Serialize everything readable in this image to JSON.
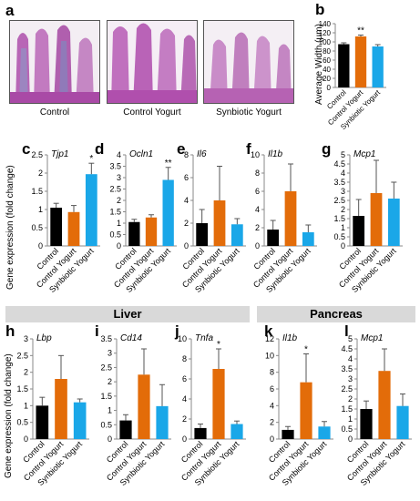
{
  "panels": {
    "a": "a",
    "b": "b",
    "c": "c",
    "d": "d",
    "e": "e",
    "f": "f",
    "g": "g",
    "h": "h",
    "i": "i",
    "j": "j",
    "k": "k",
    "l": "l"
  },
  "histology_captions": [
    "Control",
    "Control Yogurt",
    "Synbiotic Yogurt"
  ],
  "sections": {
    "liver": "Liver",
    "pancreas": "Pancreas"
  },
  "ylabels": {
    "b": "Average Width (µm)",
    "row1": "Gene expression (fold change)",
    "row2": "Gene expression (fold change)"
  },
  "colors": {
    "control": "#000000",
    "control_yogurt": "#e36c09",
    "synbiotic_yogurt": "#1aa7e8"
  },
  "chart_data": [
    {
      "id": "b",
      "type": "bar",
      "categories": [
        "Control",
        "Control Yogurt",
        "Synbiotic Yogurt"
      ],
      "values": [
        95,
        112,
        90
      ],
      "errors": [
        3,
        3,
        4
      ],
      "sig": [
        "",
        "**",
        ""
      ],
      "title": "",
      "ylabel": "Average Width (µm)",
      "ylim": [
        0,
        140
      ],
      "yticks": [
        0,
        20,
        40,
        60,
        80,
        100,
        120,
        140
      ]
    },
    {
      "id": "c",
      "type": "bar",
      "title": "Tjp1",
      "categories": [
        "Control",
        "Control Yogurt",
        "Synbiotic Yogurt"
      ],
      "values": [
        1.05,
        0.93,
        1.97
      ],
      "errors": [
        0.12,
        0.18,
        0.3
      ],
      "sig": [
        "",
        "",
        "*"
      ],
      "ylim": [
        0,
        2.5
      ],
      "yticks": [
        0,
        0.5,
        1,
        1.5,
        2,
        2.5
      ]
    },
    {
      "id": "d",
      "type": "bar",
      "title": "Ocln1",
      "categories": [
        "Control",
        "Control Yogurt",
        "Synbiotic Yogurt"
      ],
      "values": [
        1.05,
        1.25,
        2.9
      ],
      "errors": [
        0.12,
        0.12,
        0.55
      ],
      "sig": [
        "",
        "",
        "**"
      ],
      "ylim": [
        0,
        4
      ],
      "yticks": [
        0,
        0.5,
        1,
        1.5,
        2,
        2.5,
        3,
        3.5,
        4
      ]
    },
    {
      "id": "e",
      "type": "bar",
      "title": "Il6",
      "categories": [
        "Control",
        "Control Yogurt",
        "Synbiotic Yogurt"
      ],
      "values": [
        2,
        4,
        1.9
      ],
      "errors": [
        1.2,
        3,
        0.5
      ],
      "sig": [
        "",
        "",
        ""
      ],
      "ylim": [
        0,
        8
      ],
      "yticks": [
        0,
        2,
        4,
        6,
        8
      ]
    },
    {
      "id": "f",
      "type": "bar",
      "title": "Il1b",
      "categories": [
        "Control",
        "Control Yogurt",
        "Synbiotic Yogurt"
      ],
      "values": [
        1.8,
        6,
        1.5
      ],
      "errors": [
        1,
        3,
        0.8
      ],
      "sig": [
        "",
        "",
        ""
      ],
      "ylim": [
        0,
        10
      ],
      "yticks": [
        0,
        2,
        4,
        6,
        8,
        10
      ]
    },
    {
      "id": "g",
      "type": "bar",
      "title": "Mcp1",
      "categories": [
        "Control",
        "Control Yogurt",
        "Synbiotic Yogurt"
      ],
      "values": [
        1.65,
        2.9,
        2.6
      ],
      "errors": [
        0.9,
        1.8,
        0.9
      ],
      "sig": [
        "",
        "",
        ""
      ],
      "ylim": [
        0,
        5
      ],
      "yticks": [
        0,
        0.5,
        1,
        1.5,
        2,
        2.5,
        3,
        3.5,
        4,
        4.5,
        5
      ]
    },
    {
      "id": "h",
      "type": "bar",
      "title": "Lbp",
      "categories": [
        "Control",
        "Control Yogurt",
        "Synbiotic Yogurt"
      ],
      "values": [
        1,
        1.8,
        1.1
      ],
      "errors": [
        0.25,
        0.7,
        0.1
      ],
      "sig": [
        "",
        "",
        ""
      ],
      "ylim": [
        0,
        3
      ],
      "yticks": [
        0,
        0.5,
        1,
        1.5,
        2,
        2.5,
        3
      ]
    },
    {
      "id": "i",
      "type": "bar",
      "title": "Cd14",
      "categories": [
        "Control",
        "Control Yogurt",
        "Synbiotic Yogurt"
      ],
      "values": [
        0.65,
        2.25,
        1.15
      ],
      "errors": [
        0.2,
        0.9,
        0.75
      ],
      "sig": [
        "",
        "",
        ""
      ],
      "ylim": [
        0,
        3.5
      ],
      "yticks": [
        0,
        0.5,
        1,
        1.5,
        2,
        2.5,
        3,
        3.5
      ]
    },
    {
      "id": "j",
      "type": "bar",
      "title": "Tnfa",
      "categories": [
        "Control",
        "Control Yogurt",
        "Synbiotic Yogurt"
      ],
      "values": [
        1.1,
        7,
        1.5
      ],
      "errors": [
        0.4,
        2,
        0.3
      ],
      "sig": [
        "",
        "*",
        ""
      ],
      "ylim": [
        0,
        10
      ],
      "yticks": [
        0,
        2,
        4,
        6,
        8,
        10
      ]
    },
    {
      "id": "k",
      "type": "bar",
      "title": "Il1b",
      "categories": [
        "Control",
        "Control Yogurt",
        "Synbiotic Yogurt"
      ],
      "values": [
        1.1,
        6.8,
        1.5
      ],
      "errors": [
        0.4,
        3.4,
        0.6
      ],
      "sig": [
        "",
        "*",
        ""
      ],
      "ylim": [
        0,
        12
      ],
      "yticks": [
        0,
        2,
        4,
        6,
        8,
        10,
        12
      ]
    },
    {
      "id": "l",
      "type": "bar",
      "title": "Mcp1",
      "categories": [
        "Control",
        "Control Yogurt",
        "Synbiotic Yogurt"
      ],
      "values": [
        1.5,
        3.4,
        1.65
      ],
      "errors": [
        0.4,
        1.1,
        0.6
      ],
      "sig": [
        "",
        "",
        ""
      ],
      "ylim": [
        0,
        5
      ],
      "yticks": [
        0,
        0.5,
        1,
        1.5,
        2,
        2.5,
        3,
        3.5,
        4,
        4.5,
        5
      ]
    }
  ]
}
